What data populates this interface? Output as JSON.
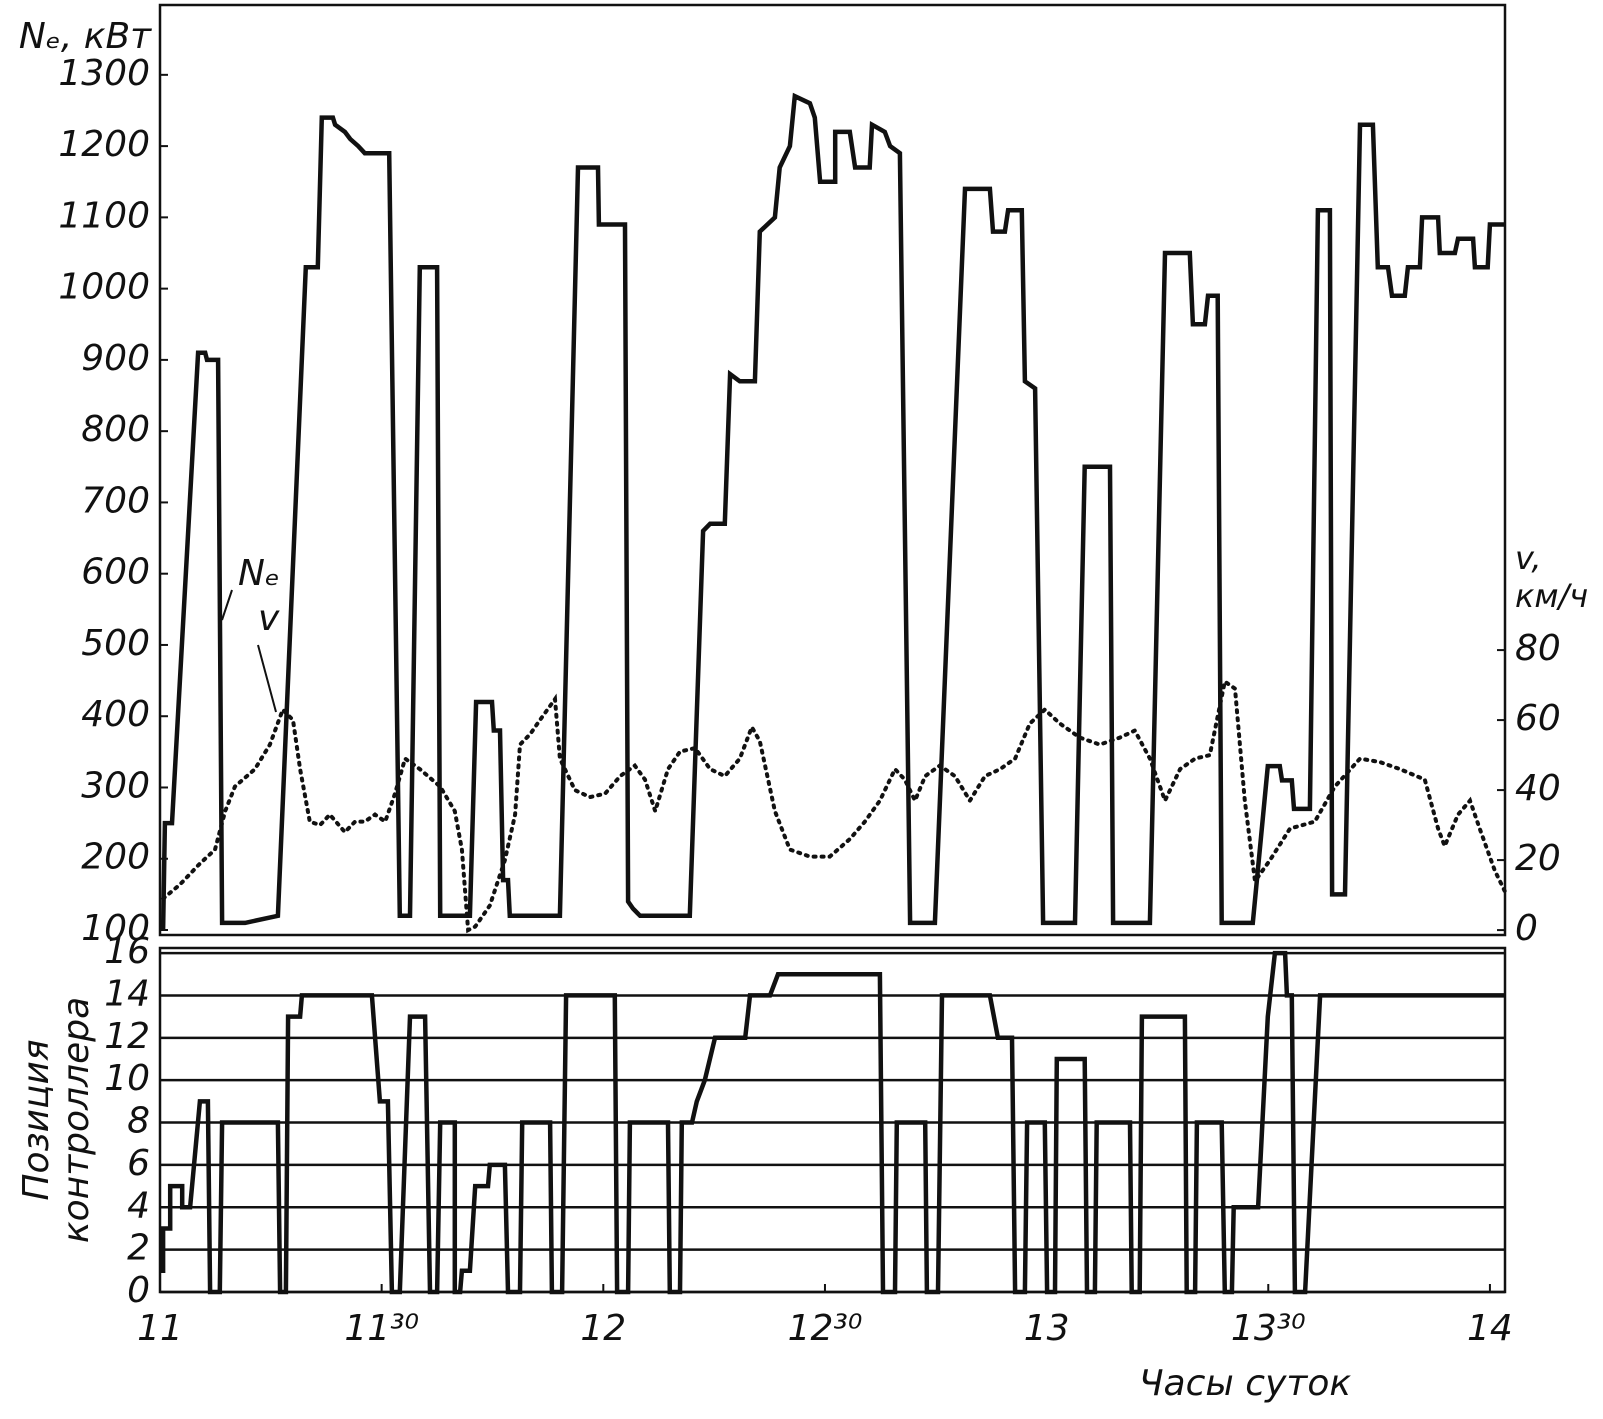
{
  "chart_data": [
    {
      "type": "line",
      "ylabel": "Nₑ, кВт",
      "y2label": [
        "v,",
        "км/ч"
      ],
      "xlim": [
        11,
        14.034
      ],
      "ylim": [
        93,
        1398
      ],
      "yticks": [
        100,
        200,
        300,
        400,
        500,
        600,
        700,
        800,
        900,
        1000,
        1100,
        1200,
        1300
      ],
      "y2lim": [
        -1.4,
        264.3
      ],
      "y2ticks": [
        0,
        20,
        40,
        60,
        80
      ],
      "grid": false,
      "series": [
        {
          "name": "Nₑ",
          "color": "#111111",
          "line_style": "solid",
          "x": [
            11.007,
            11.011,
            11.027,
            11.086,
            11.102,
            11.106,
            11.131,
            11.14,
            11.192,
            11.266,
            11.329,
            11.356,
            11.365,
            11.39,
            11.395,
            11.417,
            11.429,
            11.447,
            11.462,
            11.517,
            11.541,
            11.564,
            11.586,
            11.625,
            11.632,
            11.699,
            11.713,
            11.749,
            11.753,
            11.767,
            11.774,
            11.785,
            11.789,
            11.902,
            11.943,
            11.988,
            11.99,
            12.049,
            12.056,
            12.067,
            12.083,
            12.195,
            12.225,
            12.241,
            12.274,
            12.286,
            12.308,
            12.342,
            12.353,
            12.387,
            12.398,
            12.421,
            12.432,
            12.466,
            12.477,
            12.489,
            12.523,
            12.523,
            12.556,
            12.568,
            12.601,
            12.606,
            12.635,
            12.647,
            12.669,
            12.692,
            12.748,
            12.816,
            12.872,
            12.879,
            12.906,
            12.913,
            12.944,
            12.951,
            12.974,
            12.992,
            13.064,
            13.086,
            13.143,
            13.15,
            13.233,
            13.267,
            13.323,
            13.33,
            13.357,
            13.364,
            13.386,
            13.395,
            13.465,
            13.499,
            13.526,
            13.531,
            13.553,
            13.558,
            13.594,
            13.612,
            13.639,
            13.644,
            13.673,
            13.707,
            13.736,
            13.747,
            13.77,
            13.779,
            13.808,
            13.815,
            13.842,
            13.847,
            13.883,
            13.887,
            13.921,
            13.928,
            13.962,
            13.966,
            13.995,
            14.0,
            14.034
          ],
          "values": [
            100,
            250,
            250,
            910,
            910,
            900,
            900,
            110,
            110,
            120,
            1030,
            1030,
            1240,
            1240,
            1230,
            1220,
            1210,
            1200,
            1190,
            1190,
            120,
            120,
            1030,
            1030,
            120,
            120,
            420,
            420,
            380,
            380,
            170,
            170,
            120,
            120,
            1170,
            1170,
            1090,
            1090,
            140,
            130,
            120,
            120,
            660,
            670,
            670,
            880,
            870,
            870,
            1080,
            1100,
            1170,
            1200,
            1270,
            1260,
            1240,
            1150,
            1150,
            1220,
            1220,
            1170,
            1170,
            1230,
            1220,
            1200,
            1190,
            110,
            110,
            1140,
            1140,
            1080,
            1080,
            1110,
            1110,
            870,
            860,
            110,
            110,
            750,
            750,
            110,
            110,
            1050,
            1050,
            950,
            950,
            990,
            990,
            110,
            110,
            330,
            330,
            310,
            310,
            270,
            270,
            1110,
            1110,
            150,
            150,
            1230,
            1230,
            1030,
            1030,
            990,
            990,
            1030,
            1030,
            1100,
            1100,
            1050,
            1050,
            1070,
            1070,
            1030,
            1030,
            1090,
            1090
          ]
        },
        {
          "name": "v",
          "color": "#111111",
          "line_style": "dotted",
          "axis": "y2",
          "x": [
            11.007,
            11.045,
            11.09,
            11.124,
            11.147,
            11.169,
            11.214,
            11.248,
            11.277,
            11.3,
            11.316,
            11.338,
            11.361,
            11.383,
            11.417,
            11.44,
            11.462,
            11.485,
            11.508,
            11.53,
            11.553,
            11.586,
            11.632,
            11.665,
            11.681,
            11.695,
            11.711,
            11.744,
            11.778,
            11.801,
            11.812,
            11.835,
            11.857,
            11.891,
            11.902,
            11.936,
            11.97,
            12.004,
            12.038,
            12.071,
            12.094,
            12.117,
            12.146,
            12.173,
            12.207,
            12.241,
            12.274,
            12.308,
            12.335,
            12.353,
            12.387,
            12.421,
            12.466,
            12.511,
            12.556,
            12.59,
            12.624,
            12.658,
            12.68,
            12.703,
            12.726,
            12.759,
            12.793,
            12.827,
            12.861,
            12.895,
            12.929,
            12.962,
            12.996,
            13.03,
            13.075,
            13.12,
            13.165,
            13.199,
            13.233,
            13.267,
            13.301,
            13.335,
            13.368,
            13.402,
            13.425,
            13.447,
            13.47,
            13.504,
            13.549,
            13.605,
            13.65,
            13.707,
            13.752,
            13.797,
            13.853,
            13.883,
            13.898,
            13.928,
            13.955,
            13.977,
            14.011,
            14.034
          ],
          "values": [
            9,
            13,
            19,
            23,
            34,
            41,
            46,
            53,
            63,
            60,
            46,
            31,
            30,
            33,
            28,
            31,
            31,
            33,
            31,
            39,
            49,
            46,
            41,
            34,
            23,
            0,
            1,
            7,
            20,
            33,
            53,
            56,
            60,
            66,
            49,
            40,
            38,
            39,
            44,
            47,
            43,
            34,
            46,
            51,
            52,
            46,
            44,
            49,
            58,
            54,
            34,
            23,
            21,
            21,
            26,
            31,
            37,
            46,
            43,
            37,
            44,
            47,
            44,
            37,
            44,
            46,
            49,
            59,
            63,
            59,
            55,
            53,
            55,
            57,
            49,
            37,
            46,
            49,
            50,
            71,
            69,
            37,
            14,
            20,
            29,
            31,
            41,
            49,
            48,
            46,
            43,
            29,
            24,
            33,
            37,
            29,
            17,
            11
          ]
        }
      ]
    },
    {
      "type": "line",
      "ylabel": [
        "Позиция",
        "контроллера"
      ],
      "xlabel": "Часы суток",
      "xlim": [
        11,
        14.034
      ],
      "xticks": [
        11,
        {
          "value": 11.5,
          "label": "11³⁰"
        },
        12,
        {
          "value": 12.5,
          "label": "12³⁰"
        },
        13,
        {
          "value": 13.5,
          "label": "13³⁰"
        },
        14
      ],
      "ylim": [
        0,
        16.24
      ],
      "yticks": [
        0,
        2,
        4,
        6,
        8,
        10,
        12,
        14,
        16
      ],
      "grid": true,
      "series": [
        {
          "color": "#111111",
          "line_style": "solid",
          "x": [
            11.0,
            11.007,
            11.007,
            11.023,
            11.023,
            11.05,
            11.05,
            11.068,
            11.09,
            11.108,
            11.113,
            11.135,
            11.14,
            11.266,
            11.271,
            11.284,
            11.289,
            11.316,
            11.32,
            11.478,
            11.496,
            11.514,
            11.523,
            11.541,
            11.564,
            11.598,
            11.609,
            11.625,
            11.632,
            11.665,
            11.665,
            11.677,
            11.681,
            11.699,
            11.711,
            11.74,
            11.744,
            11.778,
            11.785,
            11.812,
            11.817,
            11.88,
            11.884,
            11.907,
            11.916,
            12.026,
            12.031,
            12.056,
            12.06,
            12.146,
            12.15,
            12.173,
            12.177,
            12.2,
            12.211,
            12.229,
            12.252,
            12.32,
            12.331,
            12.376,
            12.394,
            12.624,
            12.631,
            12.658,
            12.662,
            12.726,
            12.73,
            12.755,
            12.764,
            12.872,
            12.89,
            12.922,
            12.929,
            12.951,
            12.956,
            12.996,
            13.001,
            13.019,
            13.023,
            13.086,
            13.091,
            13.109,
            13.113,
            13.188,
            13.192,
            13.21,
            13.215,
            13.312,
            13.316,
            13.335,
            13.339,
            13.395,
            13.402,
            13.418,
            13.422,
            13.477,
            13.499,
            13.515,
            13.538,
            13.542,
            13.553,
            13.56,
            13.583,
            13.617,
            14.034
          ],
          "values": [
            1,
            1,
            3,
            3,
            5,
            5,
            4,
            4,
            9,
            9,
            0,
            0,
            8,
            8,
            0,
            0,
            13,
            13,
            14,
            14,
            9,
            9,
            0,
            0,
            13,
            13,
            0,
            0,
            8,
            8,
            0,
            0,
            1,
            1,
            5,
            5,
            6,
            6,
            0,
            0,
            8,
            8,
            0,
            0,
            14,
            14,
            0,
            0,
            8,
            8,
            0,
            0,
            8,
            8,
            9,
            10,
            12,
            12,
            14,
            14,
            15,
            15,
            0,
            0,
            8,
            8,
            0,
            0,
            14,
            14,
            12,
            12,
            0,
            0,
            8,
            8,
            0,
            0,
            11,
            11,
            0,
            0,
            8,
            8,
            0,
            0,
            13,
            13,
            0,
            0,
            8,
            8,
            0,
            0,
            4,
            4,
            13,
            16,
            16,
            14,
            14,
            0,
            0,
            14,
            14
          ]
        }
      ]
    }
  ]
}
